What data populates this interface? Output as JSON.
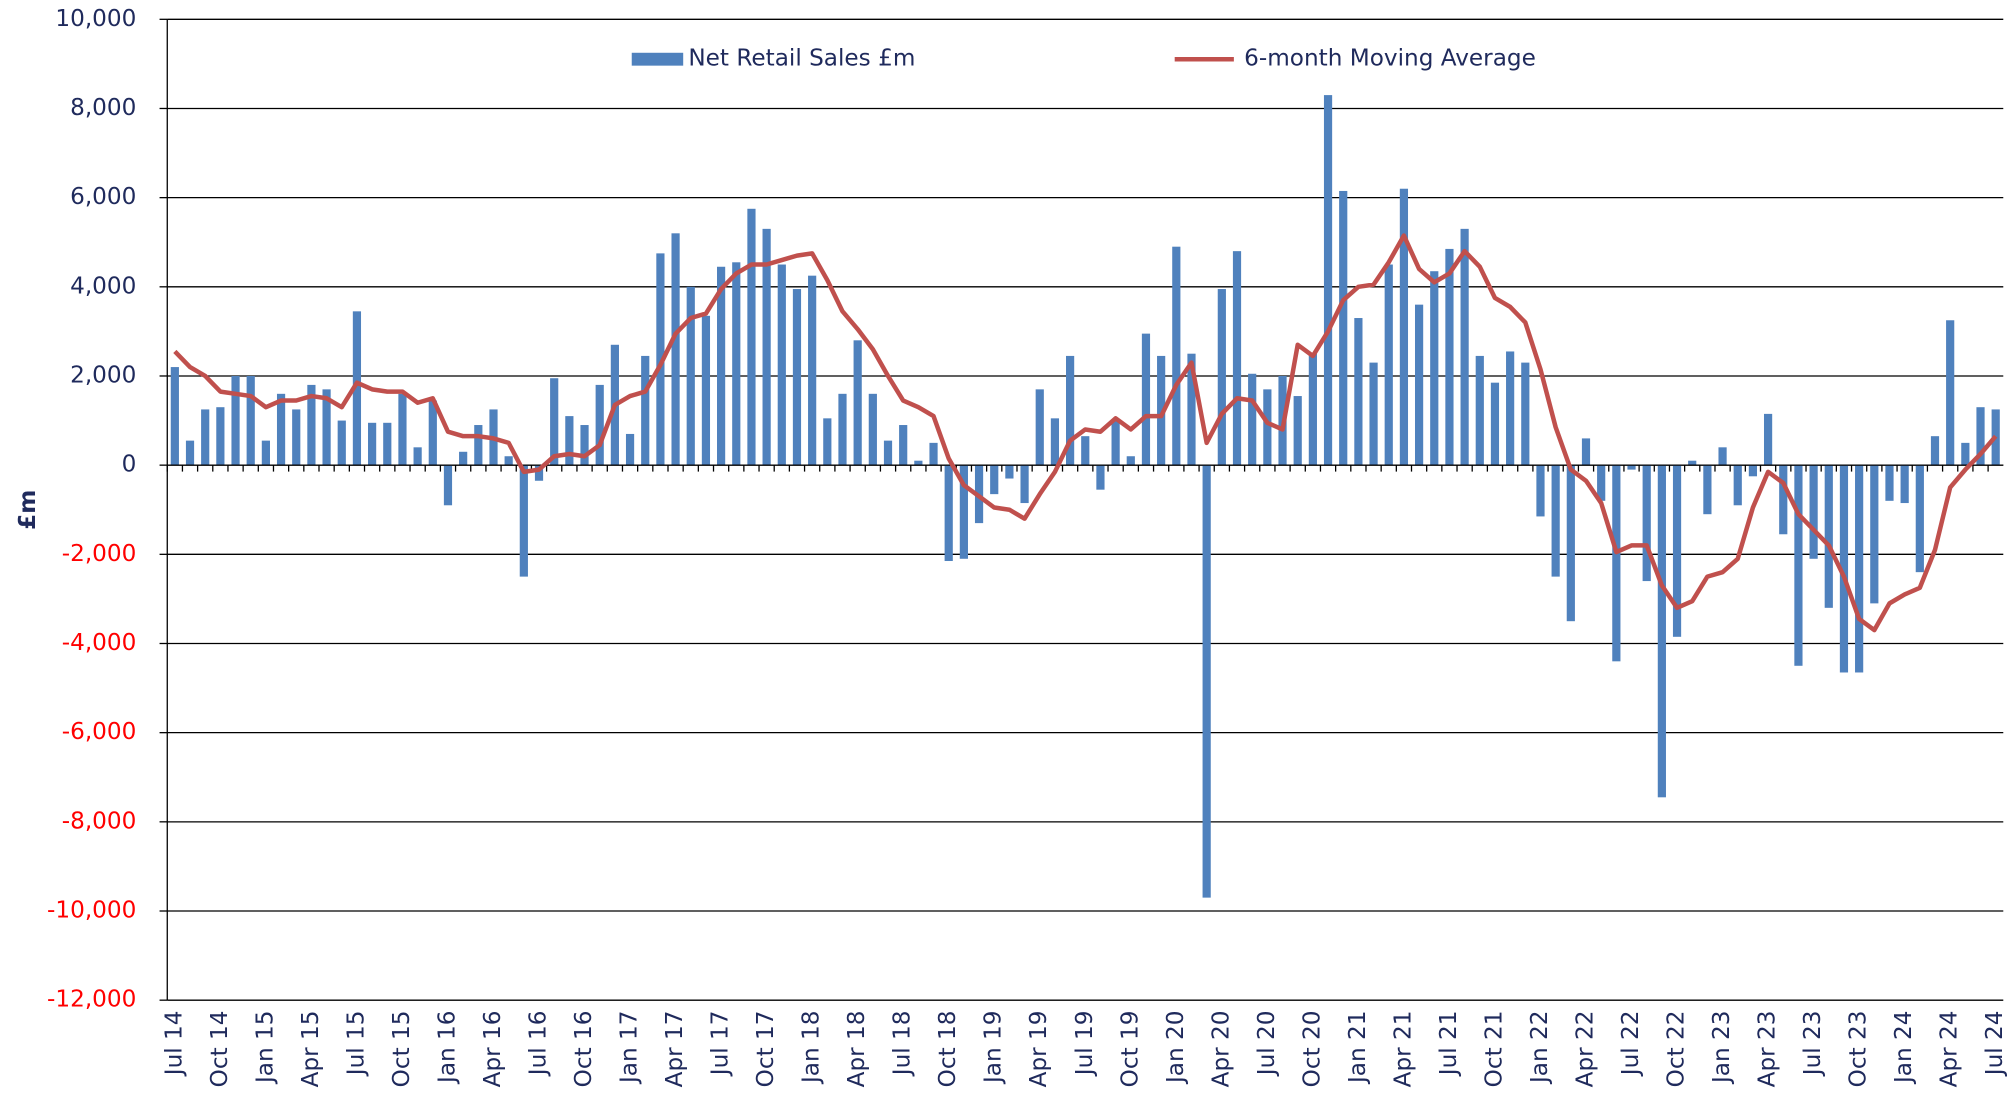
{
  "chart_data": {
    "type": "bar",
    "y_label": "£m",
    "legend": "top",
    "grid": true,
    "tick_color": "#1f2a5c",
    "negative_tick_color": "#ff0000",
    "ylim": [
      -12000,
      10000
    ],
    "yticks": [
      {
        "value": -12000,
        "label": "-12,000"
      },
      {
        "value": -10000,
        "label": "-10,000"
      },
      {
        "value": -8000,
        "label": "-8,000"
      },
      {
        "value": -6000,
        "label": "-6,000"
      },
      {
        "value": -4000,
        "label": "-4,000"
      },
      {
        "value": -2000,
        "label": "-2,000"
      },
      0,
      {
        "value": 2000,
        "label": "2,000"
      },
      {
        "value": 4000,
        "label": "4,000"
      },
      {
        "value": 6000,
        "label": "6,000"
      },
      {
        "value": 8000,
        "label": "8,000"
      },
      {
        "value": 10000,
        "label": "10,000"
      }
    ],
    "categories": [
      "Jul 14",
      null,
      null,
      "Oct 14",
      null,
      null,
      "Jan 15",
      null,
      null,
      "Apr 15",
      null,
      null,
      "Jul 15",
      null,
      null,
      "Oct 15",
      null,
      null,
      "Jan 16",
      null,
      null,
      "Apr 16",
      null,
      null,
      "Jul 16",
      null,
      null,
      "Oct 16",
      null,
      null,
      "Jan 17",
      null,
      null,
      "Apr 17",
      null,
      null,
      "Jul 17",
      null,
      null,
      "Oct 17",
      null,
      null,
      "Jan 18",
      null,
      null,
      "Apr 18",
      null,
      null,
      "Jul 18",
      null,
      null,
      "Oct 18",
      null,
      null,
      "Jan 19",
      null,
      null,
      "Apr 19",
      null,
      null,
      "Jul 19",
      null,
      null,
      "Oct 19",
      null,
      null,
      "Jan 20",
      null,
      null,
      "Apr 20",
      null,
      null,
      "Jul 20",
      null,
      null,
      "Oct 20",
      null,
      null,
      "Jan 21",
      null,
      null,
      "Apr 21",
      null,
      null,
      "Jul 21",
      null,
      null,
      "Oct 21",
      null,
      null,
      "Jan 22",
      null,
      null,
      "Apr 22",
      null,
      null,
      "Jul 22",
      null,
      null,
      "Oct 22",
      null,
      null,
      "Jan 23",
      null,
      null,
      "Apr 23",
      null,
      null,
      "Jul 23",
      null,
      null,
      "Oct 23",
      null,
      null,
      "Jan 24",
      null,
      null,
      "Apr 24",
      null,
      null,
      "Jul 24"
    ],
    "series": [
      {
        "name": "Net Retail Sales £m",
        "type": "bar",
        "color": "#4f81bd",
        "values": [
          2200,
          550,
          1250,
          1300,
          2000,
          2000,
          550,
          1600,
          1250,
          1800,
          1700,
          1000,
          3450,
          950,
          950,
          1600,
          400,
          1450,
          -900,
          300,
          900,
          1250,
          200,
          -2500,
          -350,
          1950,
          1100,
          900,
          1800,
          2700,
          700,
          2450,
          4750,
          5200,
          4000,
          3350,
          4450,
          4550,
          5750,
          5300,
          4500,
          3950,
          4250,
          1050,
          1600,
          2800,
          1600,
          550,
          900,
          100,
          500,
          -2150,
          -2100,
          -1300,
          -650,
          -300,
          -850,
          1700,
          1050,
          2450,
          650,
          -550,
          1000,
          200,
          2950,
          2450,
          4900,
          2500,
          -9700,
          3950,
          4800,
          2050,
          1700,
          2000,
          1550,
          2500,
          8300,
          6150,
          3300,
          2300,
          4500,
          6200,
          3600,
          4350,
          4850,
          5300,
          2450,
          1850,
          2550,
          2300,
          -1150,
          -2500,
          -3500,
          600,
          -800,
          -4400,
          -100,
          -2600,
          -7450,
          -3850,
          100,
          -1100,
          400,
          -900,
          -250,
          1150,
          -1550,
          -4500,
          -2100,
          -3200,
          -4650,
          -4650,
          -3100,
          -800,
          -850,
          -2400,
          650,
          3250,
          500,
          1300,
          1250
        ]
      },
      {
        "name": "6-month Moving Average",
        "type": "line",
        "color": "#c0504d",
        "values": [
          2550,
          2200,
          2000,
          1650,
          1600,
          1550,
          1300,
          1450,
          1450,
          1550,
          1500,
          1300,
          1850,
          1700,
          1650,
          1650,
          1400,
          1500,
          750,
          650,
          650,
          600,
          500,
          -150,
          -100,
          200,
          250,
          200,
          450,
          1350,
          1550,
          1650,
          2250,
          2950,
          3300,
          3400,
          3950,
          4300,
          4500,
          4500,
          4600,
          4700,
          4750,
          4150,
          3450,
          3050,
          2600,
          2000,
          1450,
          1300,
          1100,
          150,
          -450,
          -700,
          -950,
          -1000,
          -1200,
          -650,
          -150,
          550,
          800,
          750,
          1050,
          800,
          1100,
          1100,
          1800,
          2300,
          500,
          1150,
          1500,
          1450,
          950,
          800,
          2700,
          2450,
          3000,
          3700,
          4000,
          4050,
          4550,
          5150,
          4400,
          4100,
          4300,
          4800,
          4450,
          3750,
          3550,
          3200,
          2150,
          850,
          -100,
          -350,
          -850,
          -1950,
          -1800,
          -1800,
          -2700,
          -3200,
          -3050,
          -2500,
          -2400,
          -2100,
          -950,
          -150,
          -400,
          -1100,
          -1450,
          -1800,
          -2500,
          -3450,
          -3700,
          -3100,
          -2900,
          -2750,
          -1900,
          -500,
          -100,
          250,
          650
        ]
      }
    ]
  }
}
